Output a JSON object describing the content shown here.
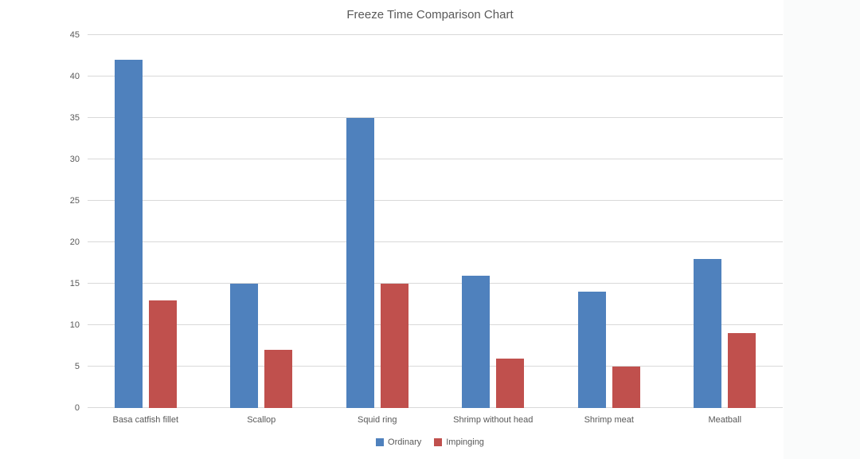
{
  "title": "Freeze Time Comparison Chart",
  "colors": {
    "ordinary": "#4F81BD",
    "impinging": "#C0504D",
    "gridline": "#D9D9D9",
    "text": "#595959",
    "background": "#FFFFFF"
  },
  "legend": {
    "items": [
      {
        "label": "Ordinary",
        "color": "#4F81BD"
      },
      {
        "label": "Impinging",
        "color": "#C0504D"
      }
    ]
  },
  "chart_data": {
    "type": "bar",
    "title": "Freeze Time Comparison Chart",
    "categories": [
      "Basa catfish fillet",
      "Scallop",
      "Squid ring",
      "Shrimp without head",
      "Shrimp meat",
      "Meatball"
    ],
    "series": [
      {
        "name": "Ordinary",
        "color": "#4F81BD",
        "values": [
          42,
          15,
          35,
          16,
          14,
          18
        ]
      },
      {
        "name": "Impinging",
        "color": "#C0504D",
        "values": [
          13,
          7,
          15,
          6,
          5,
          9
        ]
      }
    ],
    "xlabel": "",
    "ylabel": "",
    "ylim": [
      0,
      45
    ],
    "ytick_step": 5,
    "yticks": [
      0,
      5,
      10,
      15,
      20,
      25,
      30,
      35,
      40,
      45
    ],
    "grid": true,
    "legend_position": "bottom-center"
  }
}
